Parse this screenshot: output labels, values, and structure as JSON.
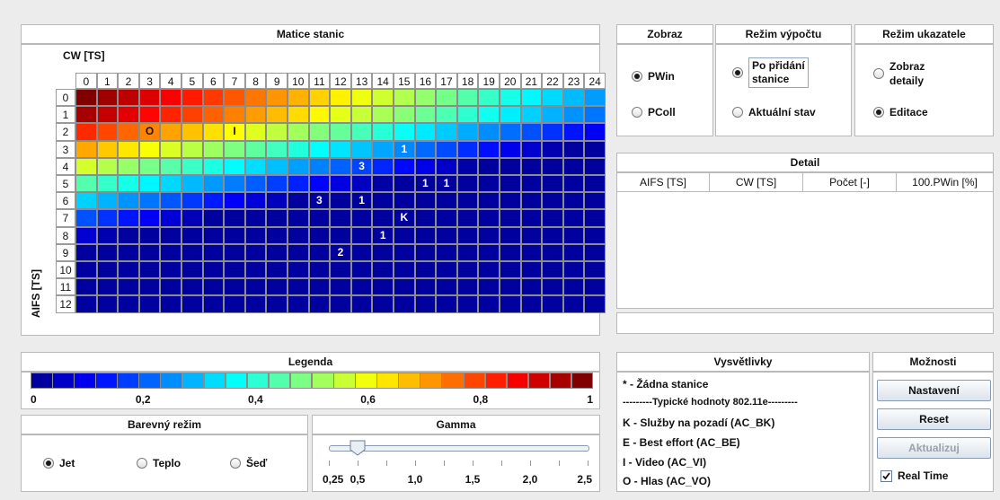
{
  "matrix": {
    "title": "Matice stanic",
    "x_axis_label": "CW [TS]",
    "y_axis_label": "AIFS [TS]",
    "columns": [
      "0",
      "1",
      "2",
      "3",
      "4",
      "5",
      "6",
      "7",
      "8",
      "9",
      "10",
      "11",
      "12",
      "13",
      "14",
      "15",
      "16",
      "17",
      "18",
      "19",
      "20",
      "21",
      "22",
      "23",
      "24"
    ],
    "rows": [
      "0",
      "1",
      "2",
      "3",
      "4",
      "5",
      "6",
      "7",
      "8",
      "9",
      "10",
      "11",
      "12"
    ],
    "markers": [
      {
        "row": 2,
        "col": 3,
        "text": "O"
      },
      {
        "row": 2,
        "col": 7,
        "text": "I"
      },
      {
        "row": 3,
        "col": 15,
        "text": "1"
      },
      {
        "row": 4,
        "col": 13,
        "text": "3"
      },
      {
        "row": 5,
        "col": 16,
        "text": "1"
      },
      {
        "row": 5,
        "col": 17,
        "text": "1"
      },
      {
        "row": 6,
        "col": 11,
        "text": "3"
      },
      {
        "row": 6,
        "col": 13,
        "text": "1"
      },
      {
        "row": 7,
        "col": 15,
        "text": "K"
      },
      {
        "row": 8,
        "col": 14,
        "text": "1"
      },
      {
        "row": 9,
        "col": 12,
        "text": "2"
      }
    ]
  },
  "zobraz": {
    "title": "Zobraz",
    "options": [
      {
        "label": "PWin",
        "selected": true
      },
      {
        "label": "PColl",
        "selected": false
      }
    ]
  },
  "rezim_vypoctu": {
    "title": "Režim výpočtu",
    "options": [
      {
        "label_line1": "Po přidání",
        "label_line2": "stanice",
        "selected": true
      },
      {
        "label": "Aktuální stav",
        "selected": false
      }
    ]
  },
  "rezim_ukazatele": {
    "title": "Režim ukazatele",
    "options": [
      {
        "label_line1": "Zobraz",
        "label_line2": "detaily",
        "selected": false
      },
      {
        "label": "Editace",
        "selected": true
      }
    ]
  },
  "detail": {
    "title": "Detail",
    "headers": [
      "AIFS [TS]",
      "CW [TS]",
      "Počet [-]",
      "100.PWin [%]"
    ]
  },
  "legenda": {
    "title": "Legenda",
    "ticks": [
      "0",
      "0,2",
      "0,4",
      "0,6",
      "0,8",
      "1"
    ]
  },
  "barevny_rezim": {
    "title": "Barevný režim",
    "options": [
      {
        "label": "Jet",
        "selected": true
      },
      {
        "label": "Teplo",
        "selected": false
      },
      {
        "label": "Šeď",
        "selected": false
      }
    ]
  },
  "gamma": {
    "title": "Gamma",
    "ticks": [
      "0,25",
      "0,5",
      "1,0",
      "1,5",
      "2,0",
      "2,5"
    ],
    "value": 0.5,
    "min": 0.25,
    "max": 2.5
  },
  "vysvetlivky": {
    "title": "Vysvětlivky",
    "lines": [
      "* - Žádna stanice",
      "---------Typické hodnoty 802.11e---------",
      "K - Služby na pozadí (AC_BK)",
      "E - Best effort (AC_BE)",
      "I - Video (AC_VI)",
      "O - Hlas (AC_VO)"
    ]
  },
  "moznosti": {
    "title": "Možnosti",
    "nastaveni": "Nastavení",
    "reset": "Reset",
    "aktualizuj": "Aktualizuj",
    "realtime": "Real Time",
    "realtime_checked": true
  }
}
